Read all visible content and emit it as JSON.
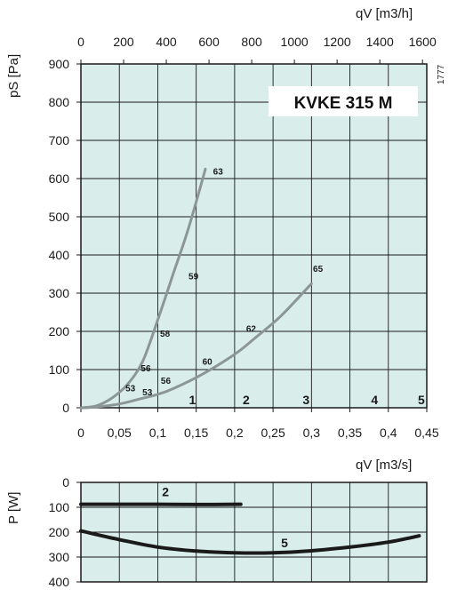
{
  "model_label": "KVKE  315  M",
  "code": "1777",
  "colors": {
    "plot_bg": "#d9eeeb",
    "grid": "#1a1a1a",
    "curve_main": "#8c9696",
    "power_curve": "#1a1a1a"
  },
  "chart_data": [
    {
      "type": "line",
      "name": "static-pressure",
      "x_unit": "m3/s",
      "xlim": [
        0,
        0.45
      ],
      "ylim": [
        0,
        900
      ],
      "x_ticks": [
        "0",
        "0,05",
        "0,1",
        "0,15",
        "0,2",
        "0,25",
        "0,3",
        "0,35",
        "0,4",
        "0,45"
      ],
      "y_ticks": [
        "0",
        "100",
        "200",
        "300",
        "400",
        "500",
        "600",
        "700",
        "800",
        "900"
      ],
      "top_ticks": [
        "0",
        "200",
        "400",
        "600",
        "800",
        "1000",
        "1200",
        "1400",
        "1600"
      ],
      "top_xlim": [
        0,
        1600
      ],
      "ylabel": "pS  [Pa]",
      "xlabel": "qV  [m3/s]",
      "top_xlabel": "qV  [m3/h]",
      "series": [
        {
          "points": [
            [
              0,
              0
            ],
            [
              0.02,
              5
            ],
            [
              0.04,
              25
            ],
            [
              0.06,
              60
            ],
            [
              0.08,
              120
            ],
            [
              0.1,
              230
            ],
            [
              0.12,
              350
            ],
            [
              0.14,
              470
            ],
            [
              0.162,
              625
            ]
          ]
        },
        {
          "points": [
            [
              0,
              0
            ],
            [
              0.02,
              2
            ],
            [
              0.05,
              10
            ],
            [
              0.08,
              25
            ],
            [
              0.1,
              35
            ],
            [
              0.12,
              50
            ],
            [
              0.16,
              90
            ],
            [
              0.2,
              140
            ],
            [
              0.225,
              180
            ],
            [
              0.26,
              240
            ],
            [
              0.3,
              325
            ]
          ]
        }
      ],
      "point_labels": [
        {
          "text": "63",
          "x": 0.172,
          "y": 620
        },
        {
          "text": "59",
          "x": 0.14,
          "y": 345
        },
        {
          "text": "58",
          "x": 0.103,
          "y": 195
        },
        {
          "text": "56",
          "x": 0.078,
          "y": 105
        },
        {
          "text": "53",
          "x": 0.058,
          "y": 52
        },
        {
          "text": "53",
          "x": 0.08,
          "y": 42
        },
        {
          "text": "56",
          "x": 0.104,
          "y": 72
        },
        {
          "text": "60",
          "x": 0.158,
          "y": 122
        },
        {
          "text": "62",
          "x": 0.215,
          "y": 208
        },
        {
          "text": "65",
          "x": 0.302,
          "y": 365
        }
      ],
      "region_labels": [
        {
          "text": "1",
          "x": 0.145
        },
        {
          "text": "2",
          "x": 0.215
        },
        {
          "text": "3",
          "x": 0.293
        },
        {
          "text": "4",
          "x": 0.382
        },
        {
          "text": "5",
          "x": 0.443
        }
      ]
    },
    {
      "type": "line",
      "name": "power",
      "xlim": [
        0,
        0.45
      ],
      "ylim": [
        400,
        0
      ],
      "y_ticks": [
        "0",
        "100",
        "200",
        "300",
        "400"
      ],
      "ylabel": "P  [W]",
      "series": [
        {
          "label": "2",
          "points": [
            [
              0,
              88
            ],
            [
              0.05,
              88
            ],
            [
              0.1,
              88
            ],
            [
              0.15,
              89
            ],
            [
              0.208,
              88
            ]
          ]
        },
        {
          "label": "5",
          "points": [
            [
              0,
              195
            ],
            [
              0.05,
              230
            ],
            [
              0.1,
              260
            ],
            [
              0.15,
              276
            ],
            [
              0.2,
              283
            ],
            [
              0.25,
              283
            ],
            [
              0.3,
              275
            ],
            [
              0.35,
              260
            ],
            [
              0.4,
              240
            ],
            [
              0.44,
              215
            ]
          ]
        }
      ],
      "series_labels": [
        {
          "text": "2",
          "x": 0.11,
          "y": 55
        },
        {
          "text": "5",
          "x": 0.265,
          "y": 260
        }
      ]
    }
  ]
}
